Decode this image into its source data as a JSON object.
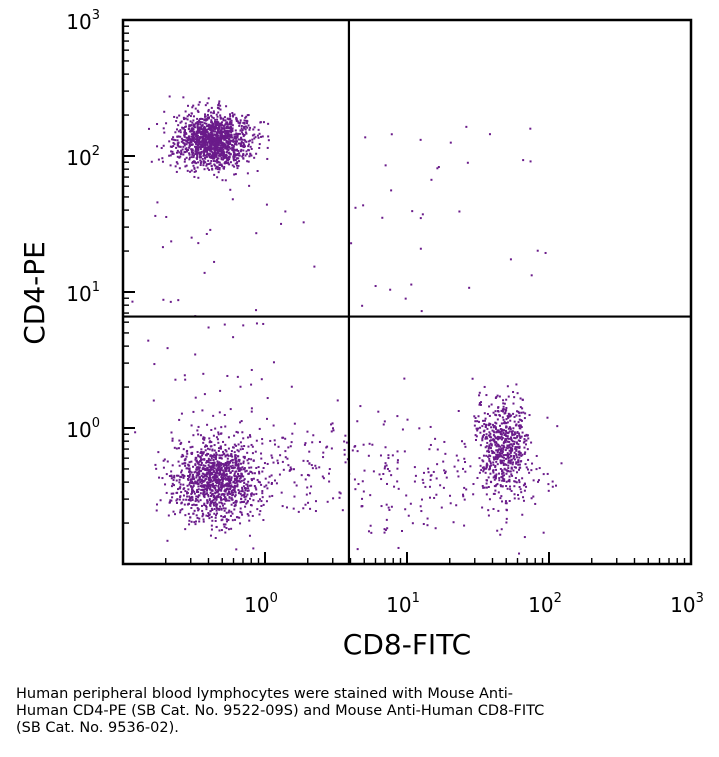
{
  "chart_data": {
    "type": "scatter",
    "title": "",
    "xlabel": "CD8-FITC",
    "ylabel": "CD4-PE",
    "x_scale": "log",
    "y_scale": "log",
    "xlim": [
      0.1,
      1000
    ],
    "ylim": [
      0.1,
      1000
    ],
    "x_ticks": [
      {
        "base": "10",
        "exp": "0",
        "value": 1
      },
      {
        "base": "10",
        "exp": "1",
        "value": 10
      },
      {
        "base": "10",
        "exp": "2",
        "value": 100
      },
      {
        "base": "10",
        "exp": "3",
        "value": 1000
      }
    ],
    "y_ticks": [
      {
        "base": "10",
        "exp": "0",
        "value": 1
      },
      {
        "base": "10",
        "exp": "1",
        "value": 10
      },
      {
        "base": "10",
        "exp": "2",
        "value": 100
      },
      {
        "base": "10",
        "exp": "3",
        "value": 1000
      }
    ],
    "quadrant_gates": {
      "x": 3.9,
      "y": 6.6
    },
    "point_color": "#6a1b8a",
    "grid": false,
    "legend": "none",
    "populations": [
      {
        "center": [
          0.43,
          130
        ],
        "spread": [
          0.13,
          0.1
        ],
        "count": 1400
      },
      {
        "center": [
          0.45,
          0.42
        ],
        "spread": [
          0.15,
          0.15
        ],
        "count": 1100
      },
      {
        "center": [
          48,
          0.72
        ],
        "spread": [
          0.09,
          0.19
        ],
        "count": 600
      }
    ]
  },
  "caption": {
    "line1": "Human peripheral blood lymphocytes were stained with Mouse Anti-",
    "line2": "Human CD4-PE (SB Cat. No. 9522-09S) and Mouse Anti-Human CD8-FITC",
    "line3": "(SB Cat. No. 9536-02)."
  }
}
